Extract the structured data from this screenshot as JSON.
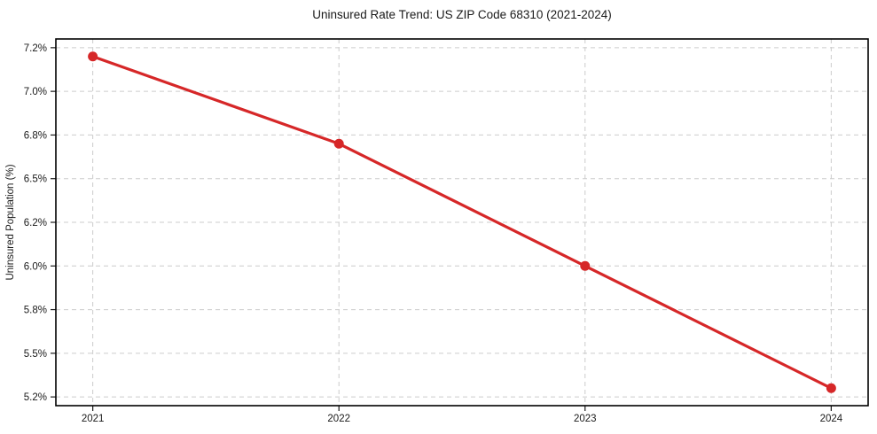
{
  "chart_data": {
    "type": "line",
    "title": "Uninsured Rate Trend: US ZIP Code 68310 (2021-2024)",
    "xlabel": "",
    "ylabel": "Uninsured Population (%)",
    "x": [
      2021,
      2022,
      2023,
      2024
    ],
    "x_tick_labels": [
      "2021",
      "2022",
      "2023",
      "2024"
    ],
    "series": [
      {
        "name": "Uninsured rate",
        "values": [
          7.2,
          6.7,
          6.0,
          5.3
        ],
        "color": "#d62728",
        "marker": "circle",
        "line_width": 3.2,
        "marker_radius": 5.5
      }
    ],
    "xlim": [
      2020.85,
      2024.15
    ],
    "ylim": [
      5.2,
      7.3
    ],
    "yticks": [
      7.25,
      7.0,
      6.75,
      6.5,
      6.25,
      6.0,
      5.75,
      5.5,
      5.25
    ],
    "ytick_labels": [
      "7.2%",
      "7.0%",
      "6.8%",
      "6.5%",
      "6.2%",
      "6.0%",
      "5.8%",
      "5.5%",
      "5.2%"
    ],
    "grid": true,
    "grid_style": "dashed",
    "legend": "none",
    "colors": {
      "line": "#d62728",
      "grid": "#cccccc",
      "frame": "#000000",
      "tick": "#1a1a1a",
      "text": "#1a1a1a",
      "background": "#ffffff"
    }
  }
}
